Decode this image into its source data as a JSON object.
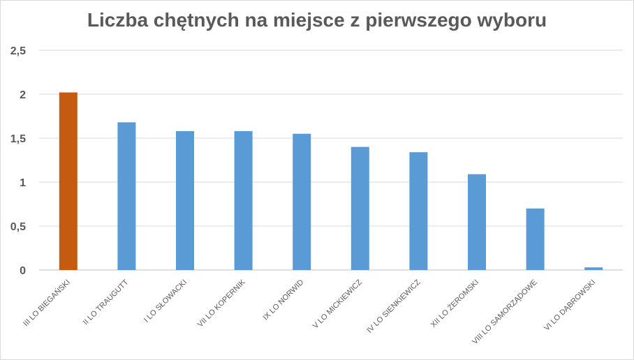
{
  "chart_data": {
    "type": "bar",
    "title": "Liczba chętnych na miejsce z pierwszego wyboru",
    "xlabel": "",
    "ylabel": "",
    "ylim": [
      0,
      2.5
    ],
    "yticks": [
      "0",
      "0,5",
      "1",
      "1,5",
      "2",
      "2,5"
    ],
    "ytick_values": [
      0,
      0.5,
      1,
      1.5,
      2,
      2.5
    ],
    "grid": true,
    "categories": [
      "III LO BIEGAŃSKI",
      "II LO TRAUGUTT",
      "I LO SŁOWACKI",
      "VII LO KOPERNIK",
      "IX LO NORWID",
      "V LO MICKIEWICZ",
      "IV LO SIENKIEWICZ",
      "XII LO ŻEROMSKI",
      "VIII LO SAMORZĄDOWE",
      "VI LO DĄBROWSKI"
    ],
    "values": [
      2.02,
      1.68,
      1.58,
      1.58,
      1.55,
      1.4,
      1.34,
      1.09,
      0.7,
      0.03
    ],
    "colors": [
      "#C55A11",
      "#5B9BD5",
      "#5B9BD5",
      "#5B9BD5",
      "#5B9BD5",
      "#5B9BD5",
      "#5B9BD5",
      "#5B9BD5",
      "#5B9BD5",
      "#5B9BD5"
    ]
  }
}
